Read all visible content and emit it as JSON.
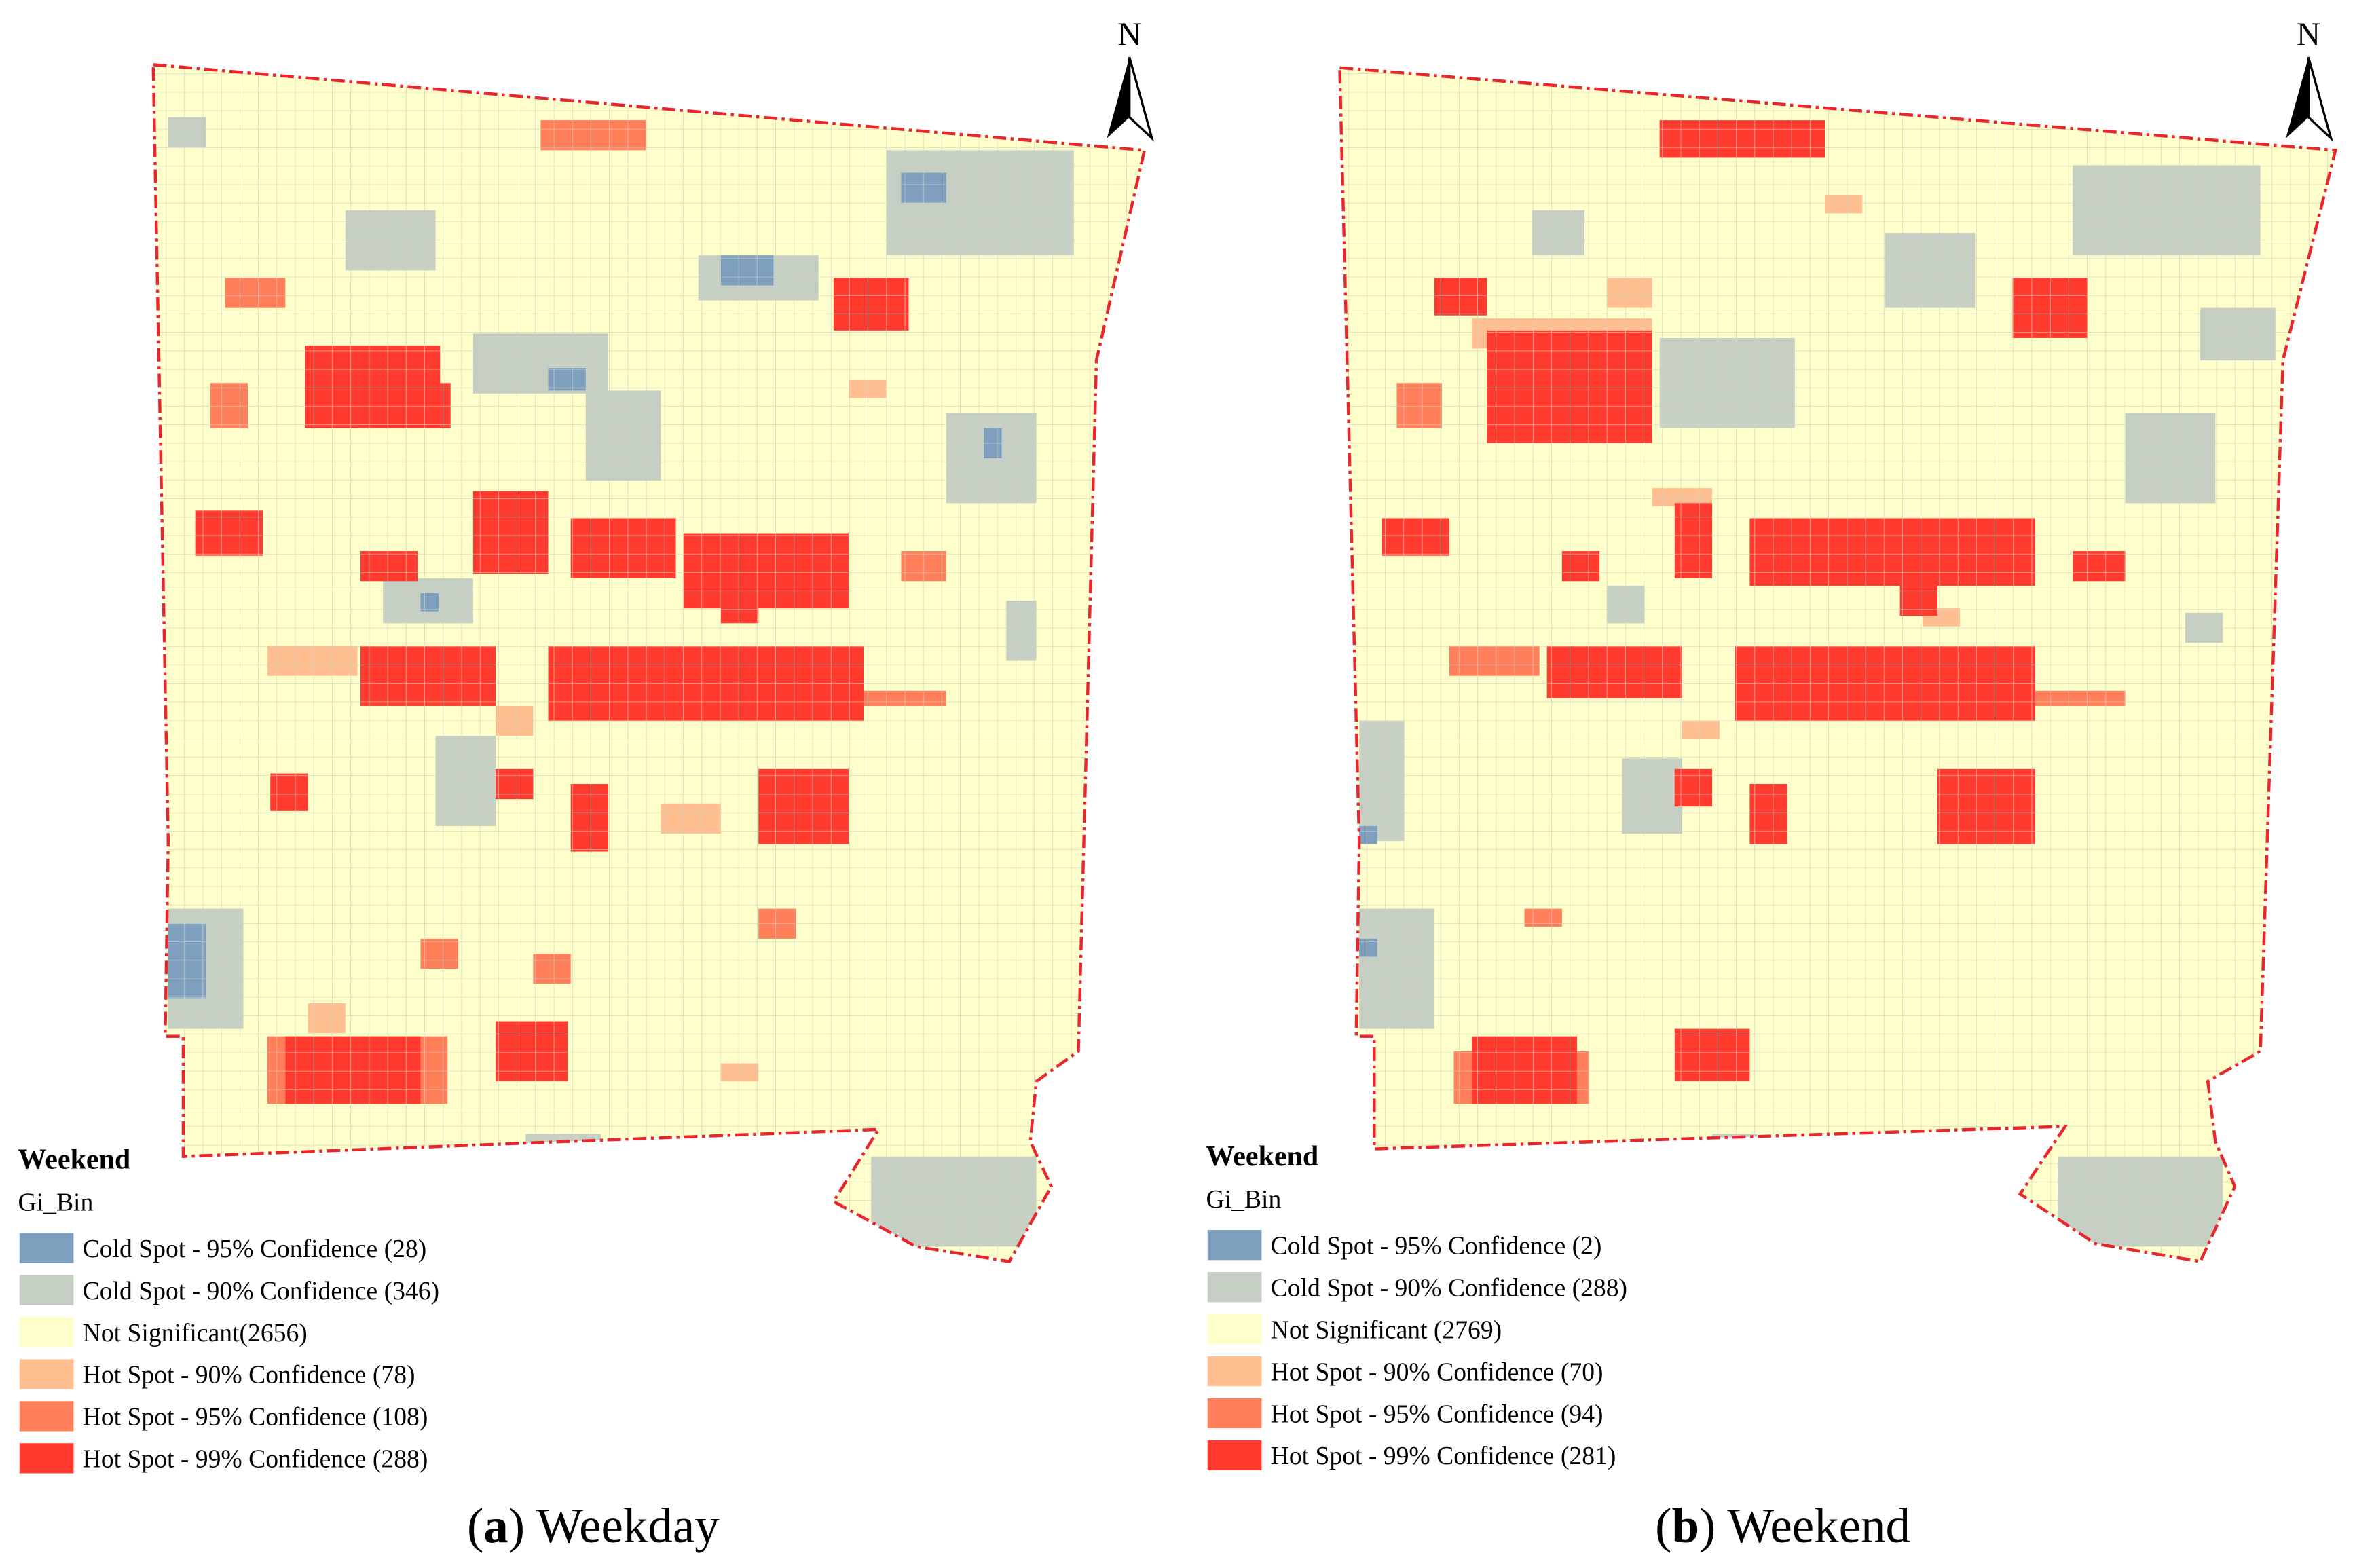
{
  "panels": [
    {
      "north": "N",
      "legend": {
        "title": "Weekend",
        "field": "Gi_Bin",
        "items": [
          {
            "text": "Cold Spot - 95% Confidence  (28)",
            "color": "#7f9fbf"
          },
          {
            "text": "Cold Spot - 90% Confidence  (346)",
            "color": "#c5cfc3"
          },
          {
            "text": "Not Significant(2656)",
            "color": "#ffffcc"
          },
          {
            "text": "Hot Spot - 90% Confidence  (78)",
            "color": "#ffbf91"
          },
          {
            "text": "Hot Spot - 95% Confidence  (108)",
            "color": "#ff7f5b"
          },
          {
            "text": "Hot Spot - 99% Confidence  (288)",
            "color": "#ff3b30"
          }
        ]
      },
      "caption": {
        "open": "(",
        "letter": "a",
        "text": ") Weekday"
      }
    },
    {
      "north": "N",
      "legend": {
        "title": "Weekend",
        "field": "Gi_Bin",
        "items": [
          {
            "text": "Cold Spot - 95% Confidence (2)",
            "color": "#7f9fbf"
          },
          {
            "text": "Cold Spot - 90% Confidence (288)",
            "color": "#c5cfc3"
          },
          {
            "text": "Not Significant (2769)",
            "color": "#ffffcc"
          },
          {
            "text": "Hot Spot - 90% Confidence (70)",
            "color": "#ffbf91"
          },
          {
            "text": "Hot Spot - 95% Confidence (94)",
            "color": "#ff7f5b"
          },
          {
            "text": "Hot Spot - 99% Confidence (281)",
            "color": "#ff3b30"
          }
        ]
      },
      "caption": {
        "open": "(",
        "letter": "b",
        "text": ") Weekend"
      }
    }
  ]
}
